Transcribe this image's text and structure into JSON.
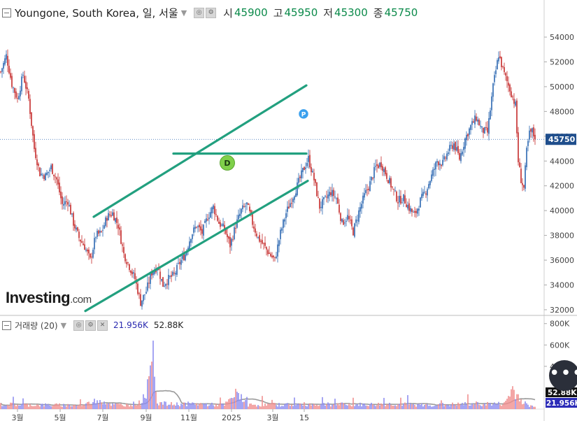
{
  "header": {
    "symbol": "Youngone, South Korea, 일, 서울",
    "open_label": "시",
    "open": "45900",
    "high_label": "고",
    "high": "45950",
    "low_label": "저",
    "low": "45300",
    "close_label": "종",
    "close": "45750"
  },
  "volume_header": {
    "label": "거래량 (20)",
    "value1": "21.956K",
    "value2": "52.88K"
  },
  "logo": {
    "name": "Investing",
    "suffix": ".com"
  },
  "colors": {
    "up": "#2a66b0",
    "down": "#c52a2a",
    "trend": "#22a07f",
    "vol_up": "#8f8ff0",
    "vol_down": "#f09090",
    "vol_ma": "#9a9a9a",
    "price_tag": "#1f4e8c",
    "vol_tag1": "#2c2cb8",
    "vol_tag2": "#111111"
  },
  "markers": [
    {
      "label": "D",
      "color": "#7fd04a"
    },
    {
      "label": "P",
      "color": "#3aa0ee"
    }
  ],
  "chart_data": {
    "type": "candlestick",
    "price_axis": {
      "ticks": [
        "54000",
        "52000",
        "50000",
        "48000",
        "46000",
        "44000",
        "42000",
        "40000",
        "38000",
        "36000",
        "34000",
        "32000"
      ],
      "range": [
        31600,
        55300
      ]
    },
    "last_price": "45750",
    "volume_axis": {
      "ticks": [
        "800K",
        "600K",
        "400K"
      ],
      "range": [
        0,
        870000
      ],
      "last_volume": "21.956K",
      "volume_ma": "52.88K"
    },
    "x_ticks": [
      "3월",
      "5월",
      "7월",
      "9월",
      "11월",
      "2025",
      "3월",
      "15"
    ],
    "price_close_keypoints": [
      [
        0,
        51200
      ],
      [
        4,
        52500
      ],
      [
        8,
        50200
      ],
      [
        12,
        49000
      ],
      [
        16,
        51000
      ],
      [
        20,
        49000
      ],
      [
        24,
        45000
      ],
      [
        28,
        43000
      ],
      [
        32,
        42800
      ],
      [
        36,
        43500
      ],
      [
        40,
        42500
      ],
      [
        44,
        40500
      ],
      [
        48,
        40800
      ],
      [
        52,
        39000
      ],
      [
        56,
        37800
      ],
      [
        60,
        37100
      ],
      [
        64,
        36000
      ],
      [
        68,
        38000
      ],
      [
        72,
        38200
      ],
      [
        76,
        39500
      ],
      [
        80,
        39800
      ],
      [
        84,
        38800
      ],
      [
        88,
        36500
      ],
      [
        92,
        35500
      ],
      [
        96,
        34500
      ],
      [
        100,
        32600
      ],
      [
        104,
        33500
      ],
      [
        108,
        35000
      ],
      [
        112,
        35500
      ],
      [
        116,
        34000
      ],
      [
        120,
        34500
      ],
      [
        124,
        34800
      ],
      [
        128,
        35800
      ],
      [
        132,
        36500
      ],
      [
        136,
        38000
      ],
      [
        140,
        38800
      ],
      [
        144,
        38200
      ],
      [
        148,
        39500
      ],
      [
        152,
        40300
      ],
      [
        156,
        39000
      ],
      [
        160,
        38500
      ],
      [
        164,
        37200
      ],
      [
        168,
        38800
      ],
      [
        172,
        40000
      ],
      [
        176,
        40500
      ],
      [
        180,
        39000
      ],
      [
        184,
        37800
      ],
      [
        188,
        37200
      ],
      [
        192,
        36500
      ],
      [
        196,
        36000
      ],
      [
        200,
        38200
      ],
      [
        204,
        39800
      ],
      [
        208,
        40900
      ],
      [
        212,
        42000
      ],
      [
        216,
        43200
      ],
      [
        220,
        44200
      ],
      [
        224,
        42500
      ],
      [
        228,
        40300
      ],
      [
        232,
        40900
      ],
      [
        236,
        41500
      ],
      [
        240,
        41000
      ],
      [
        244,
        39000
      ],
      [
        248,
        39500
      ],
      [
        252,
        38300
      ],
      [
        256,
        39900
      ],
      [
        260,
        41200
      ],
      [
        264,
        42200
      ],
      [
        268,
        43500
      ],
      [
        272,
        43800
      ],
      [
        276,
        42800
      ],
      [
        280,
        41800
      ],
      [
        284,
        40800
      ],
      [
        288,
        41000
      ],
      [
        292,
        40200
      ],
      [
        296,
        39600
      ],
      [
        300,
        40800
      ],
      [
        304,
        41600
      ],
      [
        308,
        42800
      ],
      [
        312,
        44000
      ],
      [
        316,
        43800
      ],
      [
        320,
        44800
      ],
      [
        324,
        45400
      ],
      [
        328,
        44200
      ],
      [
        332,
        45800
      ],
      [
        336,
        46800
      ],
      [
        340,
        47500
      ],
      [
        344,
        46500
      ],
      [
        348,
        46300
      ],
      [
        352,
        50000
      ],
      [
        356,
        52600
      ],
      [
        360,
        51000
      ],
      [
        364,
        49800
      ],
      [
        368,
        48500
      ],
      [
        370,
        44000
      ],
      [
        372,
        42500
      ],
      [
        374,
        41800
      ],
      [
        376,
        44800
      ],
      [
        378,
        46200
      ],
      [
        380,
        46400
      ],
      [
        382,
        45750
      ]
    ],
    "volume_keypoints": [
      [
        0,
        45000
      ],
      [
        20,
        40000
      ],
      [
        40,
        38000
      ],
      [
        60,
        36000
      ],
      [
        70,
        90000
      ],
      [
        80,
        42000
      ],
      [
        90,
        40000
      ],
      [
        100,
        60000
      ],
      [
        106,
        220000
      ],
      [
        108,
        800000
      ],
      [
        112,
        60000
      ],
      [
        120,
        45000
      ],
      [
        130,
        48000
      ],
      [
        140,
        50000
      ],
      [
        150,
        42000
      ],
      [
        160,
        38000
      ],
      [
        170,
        160000
      ],
      [
        176,
        40000
      ],
      [
        200,
        42000
      ],
      [
        220,
        45000
      ],
      [
        240,
        44000
      ],
      [
        260,
        42000
      ],
      [
        280,
        48000
      ],
      [
        300,
        38000
      ],
      [
        320,
        42000
      ],
      [
        340,
        50000
      ],
      [
        360,
        48000
      ],
      [
        366,
        190000
      ],
      [
        370,
        120000
      ],
      [
        376,
        40000
      ],
      [
        382,
        21956
      ]
    ],
    "trendlines": [
      {
        "name": "upper-channel",
        "p1": [
          "2024-06-18",
          39500
        ],
        "p2": [
          "2025-04-18",
          50100
        ]
      },
      {
        "name": "lower-channel",
        "p1": [
          "2024-06-06",
          31900
        ],
        "p2": [
          "2025-04-20",
          42400
        ]
      },
      {
        "name": "horizontal-support",
        "p1": [
          "2024-10-10",
          44600
        ],
        "p2": [
          "2025-04-18",
          44600
        ]
      }
    ]
  }
}
